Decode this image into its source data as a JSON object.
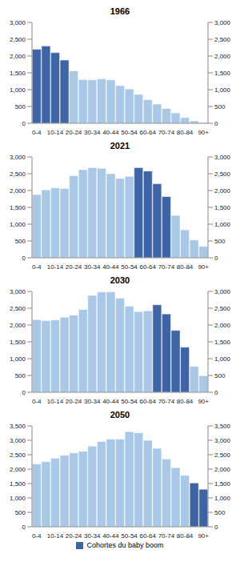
{
  "chart_data": [
    {
      "type": "bar",
      "title": "1966",
      "categories": [
        "0-4",
        null,
        "10-14",
        null,
        "20-24",
        null,
        "30-34",
        null,
        "40-44",
        null,
        "50-54",
        null,
        "60-64",
        null,
        "70-74",
        null,
        "80-84",
        null,
        "90+"
      ],
      "ylim": [
        0,
        3000
      ],
      "yticks": [
        0,
        500,
        {
          "value": 1000,
          "label": "1,000"
        },
        {
          "value": 1500,
          "label": "1,500"
        },
        {
          "value": 2000,
          "label": "2,000"
        },
        {
          "value": 2500,
          "label": "2,500"
        },
        {
          "value": 3000,
          "label": "3,000"
        }
      ],
      "stacked": true,
      "series": [
        {
          "color": "#a9c8e8",
          "values": [
            null,
            null,
            null,
            null,
            1560,
            1300,
            1290,
            1320,
            1290,
            1120,
            1020,
            860,
            700,
            570,
            440,
            310,
            170,
            70,
            20
          ]
        },
        {
          "color": "#3d64a6",
          "values": [
            2200,
            2300,
            2100,
            1880,
            null,
            null,
            null,
            null,
            null,
            null,
            null,
            null,
            null,
            null,
            null,
            null,
            null,
            null,
            null
          ]
        }
      ]
    },
    {
      "type": "bar",
      "title": "2021",
      "categories": [
        "0-4",
        null,
        "10-14",
        null,
        "20-24",
        null,
        "30-34",
        null,
        "40-44",
        null,
        "50-54",
        null,
        "60-64",
        null,
        "70-74",
        null,
        "80-84",
        null,
        "90+"
      ],
      "ylim": [
        0,
        3000
      ],
      "yticks": [
        0,
        500,
        {
          "value": 1000,
          "label": "1,000"
        },
        {
          "value": 1500,
          "label": "1,500"
        },
        {
          "value": 2000,
          "label": "2,000"
        },
        {
          "value": 2500,
          "label": "2,500"
        },
        {
          "value": 3000,
          "label": "3,000"
        }
      ],
      "stacked": true,
      "series": [
        {
          "color": "#a9c8e8",
          "values": [
            1880,
            2020,
            2080,
            2060,
            2440,
            2620,
            2680,
            2660,
            2500,
            2360,
            2420,
            null,
            null,
            null,
            null,
            1260,
            830,
            530,
            340
          ]
        },
        {
          "color": "#3d64a6",
          "values": [
            null,
            null,
            null,
            null,
            null,
            null,
            null,
            null,
            null,
            null,
            null,
            2680,
            2580,
            2200,
            1820,
            null,
            null,
            null,
            null
          ]
        }
      ]
    },
    {
      "type": "bar",
      "title": "2030",
      "categories": [
        "0-4",
        null,
        "10-14",
        null,
        "20-24",
        null,
        "30-34",
        null,
        "40-44",
        null,
        "50-54",
        null,
        "60-64",
        null,
        "70-74",
        null,
        "80-84",
        null,
        "90+"
      ],
      "ylim": [
        0,
        3000
      ],
      "yticks": [
        0,
        500,
        {
          "value": 1000,
          "label": "1,000"
        },
        {
          "value": 1500,
          "label": "1,500"
        },
        {
          "value": 2000,
          "label": "2,000"
        },
        {
          "value": 2500,
          "label": "2,500"
        },
        {
          "value": 3000,
          "label": "3,000"
        }
      ],
      "stacked": true,
      "series": [
        {
          "color": "#a9c8e8",
          "values": [
            2160,
            2130,
            2150,
            2230,
            2290,
            2460,
            2880,
            2980,
            2990,
            2800,
            2560,
            2400,
            2420,
            null,
            null,
            null,
            null,
            770,
            490
          ]
        },
        {
          "color": "#3d64a6",
          "values": [
            null,
            null,
            null,
            null,
            null,
            null,
            null,
            null,
            null,
            null,
            null,
            null,
            null,
            2600,
            2330,
            1840,
            1340,
            null,
            null
          ]
        }
      ]
    },
    {
      "type": "bar",
      "title": "2050",
      "categories": [
        "0-4",
        null,
        "10-14",
        null,
        "20-24",
        null,
        "30-34",
        null,
        "40-44",
        null,
        "50-54",
        null,
        "60-64",
        null,
        "70-74",
        null,
        "80-84",
        null,
        "90+"
      ],
      "ylim": [
        0,
        3500
      ],
      "yticks": [
        0,
        500,
        {
          "value": 1000,
          "label": "1,000"
        },
        {
          "value": 1500,
          "label": "1,500"
        },
        {
          "value": 2000,
          "label": "2,000"
        },
        {
          "value": 2500,
          "label": "2,500"
        },
        {
          "value": 3000,
          "label": "3,000"
        },
        {
          "value": 3500,
          "label": "3,500"
        }
      ],
      "stacked": true,
      "legend": "bottom",
      "series": [
        {
          "color": "#a9c8e8",
          "values": [
            2180,
            2260,
            2380,
            2480,
            2560,
            2620,
            2800,
            2960,
            3040,
            3040,
            3300,
            3260,
            3000,
            2720,
            2350,
            2050,
            1780,
            null,
            null
          ]
        },
        {
          "name": "Cohortes du baby boom",
          "color": "#3d64a6",
          "values": [
            null,
            null,
            null,
            null,
            null,
            null,
            null,
            null,
            null,
            null,
            null,
            null,
            null,
            null,
            null,
            null,
            null,
            1520,
            1300
          ]
        }
      ]
    }
  ]
}
